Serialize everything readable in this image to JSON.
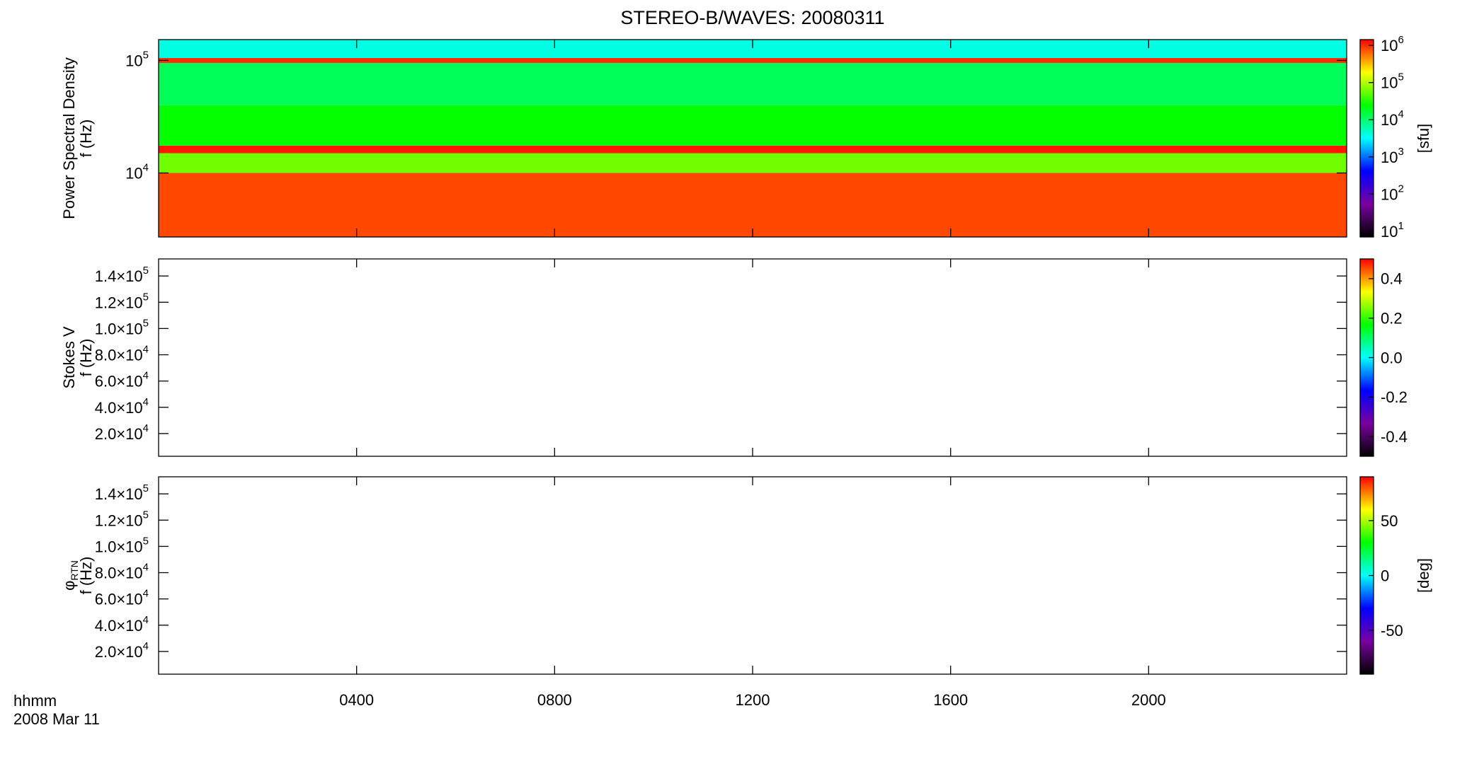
{
  "title": "STEREO-B/WAVES: 20080311",
  "time_label": "hhmm",
  "date_label": "2008 Mar 11",
  "chart_data": [
    {
      "type": "heatmap",
      "ylabel": [
        {
          "text": "Power Spectral Density"
        },
        {
          "text": "f (Hz)"
        }
      ],
      "ylog": true,
      "ylim": [
        2700,
        153000
      ],
      "yticks": [
        {
          "value": 10000,
          "label": "10",
          "exponent": "4"
        },
        {
          "value": 100000,
          "label": "10",
          "exponent": "5"
        }
      ],
      "xlim": [
        0,
        24
      ],
      "xticks": [
        {
          "value": 4,
          "label": "0400"
        },
        {
          "value": 8,
          "label": "0800"
        },
        {
          "value": 12,
          "label": "1200"
        },
        {
          "value": 16,
          "label": "1600"
        },
        {
          "value": 20,
          "label": "2000"
        }
      ],
      "bands": [
        {
          "fmin": 2700,
          "fmax": 10000,
          "value": 800000
        },
        {
          "fmin": 10000,
          "fmax": 15000,
          "value": 60000
        },
        {
          "fmin": 15000,
          "fmax": 17500,
          "value": 1200000
        },
        {
          "fmin": 17500,
          "fmax": 40000,
          "value": 25000
        },
        {
          "fmin": 40000,
          "fmax": 95000,
          "value": 12000
        },
        {
          "fmin": 95000,
          "fmax": 105000,
          "value": 1000000
        },
        {
          "fmin": 105000,
          "fmax": 153000,
          "value": 4000
        }
      ],
      "colorbar": {
        "log": true,
        "clim": [
          7,
          1430000
        ],
        "label": "[sfu]",
        "ticks": [
          {
            "value": 10,
            "label": "10",
            "exponent": "1"
          },
          {
            "value": 100,
            "label": "10",
            "exponent": "2"
          },
          {
            "value": 1000,
            "label": "10",
            "exponent": "3"
          },
          {
            "value": 10000,
            "label": "10",
            "exponent": "4"
          },
          {
            "value": 100000,
            "label": "10",
            "exponent": "5"
          },
          {
            "value": 1000000,
            "label": "10",
            "exponent": "6"
          }
        ]
      }
    },
    {
      "type": "heatmap",
      "ylabel": [
        {
          "text": "Stokes V"
        },
        {
          "text": "f (Hz)"
        }
      ],
      "ylog": false,
      "ylim": [
        2700,
        153000
      ],
      "yticks": [
        {
          "value": 20000,
          "label": "2.0×10",
          "exponent": "4"
        },
        {
          "value": 40000,
          "label": "4.0×10",
          "exponent": "4"
        },
        {
          "value": 60000,
          "label": "6.0×10",
          "exponent": "4"
        },
        {
          "value": 80000,
          "label": "8.0×10",
          "exponent": "4"
        },
        {
          "value": 100000,
          "label": "1.0×10",
          "exponent": "5"
        },
        {
          "value": 120000,
          "label": "1.2×10",
          "exponent": "5"
        },
        {
          "value": 140000,
          "label": "1.4×10",
          "exponent": "5"
        }
      ],
      "xlim": [
        0,
        24
      ],
      "xticks": [
        {
          "value": 4,
          "label": "0400"
        },
        {
          "value": 8,
          "label": "0800"
        },
        {
          "value": 12,
          "label": "1200"
        },
        {
          "value": 16,
          "label": "1600"
        },
        {
          "value": 20,
          "label": "2000"
        }
      ],
      "bands": [],
      "colorbar": {
        "log": false,
        "clim": [
          -0.5,
          0.5
        ],
        "ticks": [
          -0.4,
          -0.2,
          {
            "value": 0,
            "label": "0.0"
          },
          0.2,
          0.4
        ]
      }
    },
    {
      "type": "heatmap",
      "ylabel": [
        {
          "text": "φ",
          "sub": "RTN"
        },
        {
          "text": "f (Hz)"
        }
      ],
      "ylog": false,
      "ylim": [
        2700,
        153000
      ],
      "yticks": [
        {
          "value": 20000,
          "label": "2.0×10",
          "exponent": "4"
        },
        {
          "value": 40000,
          "label": "4.0×10",
          "exponent": "4"
        },
        {
          "value": 60000,
          "label": "6.0×10",
          "exponent": "4"
        },
        {
          "value": 80000,
          "label": "8.0×10",
          "exponent": "4"
        },
        {
          "value": 100000,
          "label": "1.0×10",
          "exponent": "5"
        },
        {
          "value": 120000,
          "label": "1.2×10",
          "exponent": "5"
        },
        {
          "value": 140000,
          "label": "1.4×10",
          "exponent": "5"
        }
      ],
      "xlim": [
        0,
        24
      ],
      "xticks": [
        {
          "value": 4,
          "label": "0400"
        },
        {
          "value": 8,
          "label": "0800"
        },
        {
          "value": 12,
          "label": "1200"
        },
        {
          "value": 16,
          "label": "1600"
        },
        {
          "value": 20,
          "label": "2000"
        }
      ],
      "bands": [],
      "colorbar": {
        "log": false,
        "clim": [
          -90,
          90
        ],
        "label": "[deg]",
        "ticks": [
          -50,
          0,
          50
        ]
      }
    }
  ],
  "colormap": [
    "#000000",
    "#7a00a0",
    "#0000ff",
    "#00ffff",
    "#00ff00",
    "#ffff00",
    "#ff0000"
  ]
}
